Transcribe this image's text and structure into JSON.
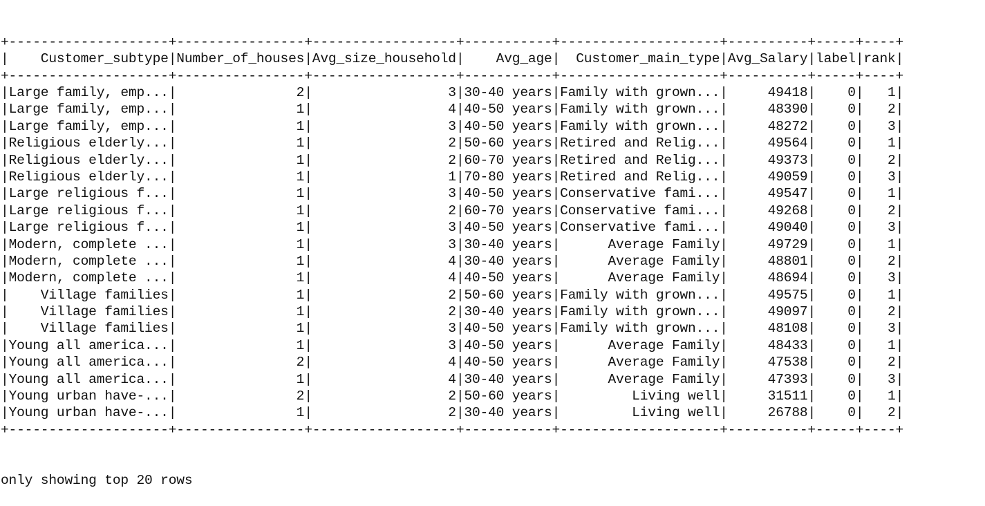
{
  "table": {
    "columns": [
      {
        "header": "Customer_subtype",
        "align": "right"
      },
      {
        "header": "Number_of_houses",
        "align": "right"
      },
      {
        "header": "Avg_size_household",
        "align": "right"
      },
      {
        "header": "Avg_age",
        "align": "right"
      },
      {
        "header": "Customer_main_type",
        "align": "right"
      },
      {
        "header": "Avg_Salary",
        "align": "right"
      },
      {
        "header": "label",
        "align": "right"
      },
      {
        "header": "rank",
        "align": "right"
      }
    ],
    "rows": [
      [
        "Large family, emp...",
        "2",
        "3",
        "30-40 years",
        "Family with grown...",
        "49418",
        "0",
        "1"
      ],
      [
        "Large family, emp...",
        "1",
        "4",
        "40-50 years",
        "Family with grown...",
        "48390",
        "0",
        "2"
      ],
      [
        "Large family, emp...",
        "1",
        "3",
        "40-50 years",
        "Family with grown...",
        "48272",
        "0",
        "3"
      ],
      [
        "Religious elderly...",
        "1",
        "2",
        "50-60 years",
        "Retired and Relig...",
        "49564",
        "0",
        "1"
      ],
      [
        "Religious elderly...",
        "1",
        "2",
        "60-70 years",
        "Retired and Relig...",
        "49373",
        "0",
        "2"
      ],
      [
        "Religious elderly...",
        "1",
        "1",
        "70-80 years",
        "Retired and Relig...",
        "49059",
        "0",
        "3"
      ],
      [
        "Large religious f...",
        "1",
        "3",
        "40-50 years",
        "Conservative fami...",
        "49547",
        "0",
        "1"
      ],
      [
        "Large religious f...",
        "1",
        "2",
        "60-70 years",
        "Conservative fami...",
        "49268",
        "0",
        "2"
      ],
      [
        "Large religious f...",
        "1",
        "3",
        "40-50 years",
        "Conservative fami...",
        "49040",
        "0",
        "3"
      ],
      [
        "Modern, complete ...",
        "1",
        "3",
        "30-40 years",
        "Average Family",
        "49729",
        "0",
        "1"
      ],
      [
        "Modern, complete ...",
        "1",
        "4",
        "30-40 years",
        "Average Family",
        "48801",
        "0",
        "2"
      ],
      [
        "Modern, complete ...",
        "1",
        "4",
        "40-50 years",
        "Average Family",
        "48694",
        "0",
        "3"
      ],
      [
        "Village families",
        "1",
        "2",
        "50-60 years",
        "Family with grown...",
        "49575",
        "0",
        "1"
      ],
      [
        "Village families",
        "1",
        "2",
        "30-40 years",
        "Family with grown...",
        "49097",
        "0",
        "2"
      ],
      [
        "Village families",
        "1",
        "3",
        "40-50 years",
        "Family with grown...",
        "48108",
        "0",
        "3"
      ],
      [
        "Young all america...",
        "1",
        "3",
        "40-50 years",
        "Average Family",
        "48433",
        "0",
        "1"
      ],
      [
        "Young all america...",
        "2",
        "4",
        "40-50 years",
        "Average Family",
        "47538",
        "0",
        "2"
      ],
      [
        "Young all america...",
        "1",
        "4",
        "30-40 years",
        "Average Family",
        "47393",
        "0",
        "3"
      ],
      [
        "Young urban have-...",
        "2",
        "2",
        "50-60 years",
        "Living well",
        "31511",
        "0",
        "1"
      ],
      [
        "Young urban have-...",
        "1",
        "2",
        "30-40 years",
        "Living well",
        "26788",
        "0",
        "2"
      ]
    ]
  },
  "footer_text": "only showing top 20 rows"
}
